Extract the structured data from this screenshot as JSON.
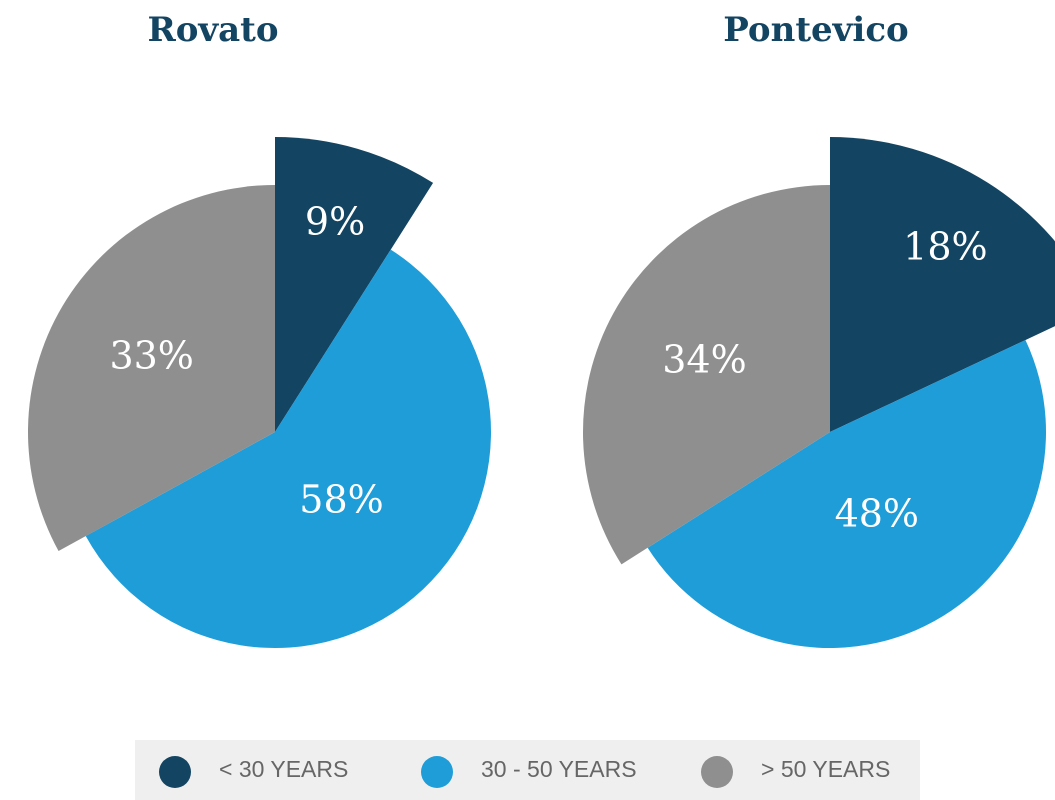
{
  "chart_data": [
    {
      "type": "pie",
      "title": "Rovato",
      "categories": [
        "< 30 YEARS",
        "30 - 50 YEARS",
        "> 50 YEARS"
      ],
      "values": [
        9,
        58,
        33
      ],
      "value_labels": [
        "9%",
        "58%",
        "33%"
      ],
      "colors": [
        "#134563",
        "#1e9dd9",
        "#8f8f8f"
      ]
    },
    {
      "type": "pie",
      "title": "Pontevico",
      "categories": [
        "< 30 YEARS",
        "30 - 50 YEARS",
        "> 50 YEARS"
      ],
      "values": [
        18,
        48,
        34
      ],
      "value_labels": [
        "18%",
        "48%",
        "34%"
      ],
      "colors": [
        "#134563",
        "#1e9dd9",
        "#8f8f8f"
      ]
    }
  ]
}
